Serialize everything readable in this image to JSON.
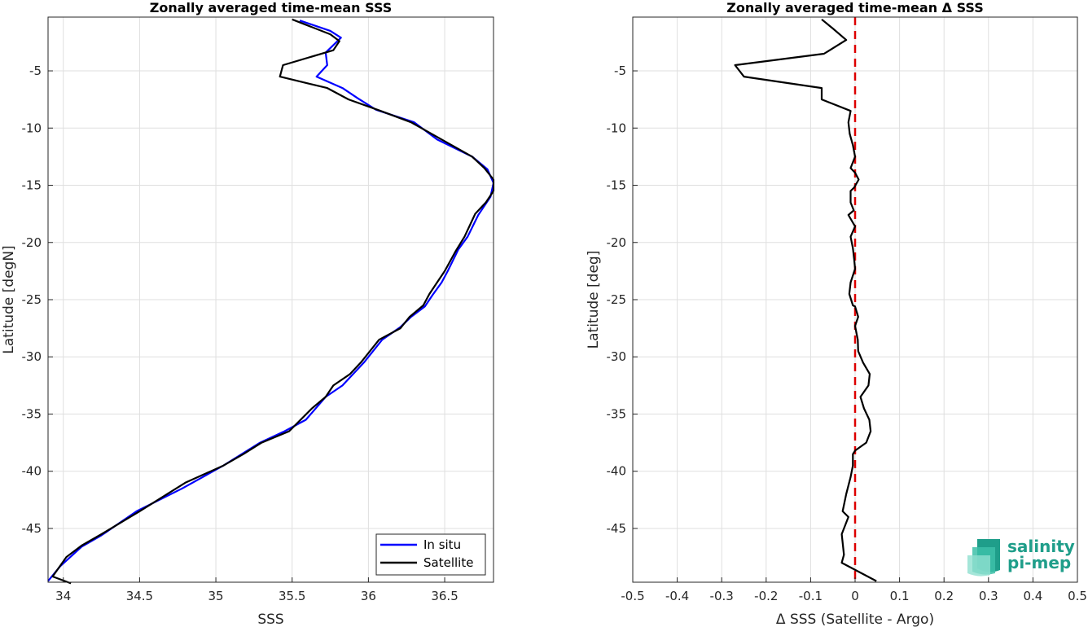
{
  "chart_data": [
    {
      "type": "line",
      "title": "Zonally averaged time-mean SSS",
      "xlabel": "SSS",
      "ylabel": "Latitude [degN]",
      "xlim": [
        33.9,
        36.82
      ],
      "ylim": [
        -49.7,
        -0.3
      ],
      "xticks": [
        34,
        34.5,
        35,
        35.5,
        36,
        36.5
      ],
      "yticks": [
        -5,
        -10,
        -15,
        -20,
        -25,
        -30,
        -35,
        -40,
        -45
      ],
      "grid": true,
      "legend": {
        "placement": "bottom-right",
        "entries": [
          "In situ",
          "Satellite"
        ]
      },
      "series": [
        {
          "name": "In situ",
          "color": "#0000ff",
          "points": [
            [
              35.55,
              -0.6
            ],
            [
              35.75,
              -1.5
            ],
            [
              35.82,
              -2.1
            ],
            [
              35.72,
              -3.4
            ],
            [
              35.73,
              -4.5
            ],
            [
              35.66,
              -5.5
            ],
            [
              35.83,
              -6.5
            ],
            [
              35.93,
              -7.4
            ],
            [
              36.05,
              -8.4
            ],
            [
              36.3,
              -9.5
            ],
            [
              36.45,
              -11.0
            ],
            [
              36.68,
              -12.5
            ],
            [
              36.78,
              -13.6
            ],
            [
              36.82,
              -14.8
            ],
            [
              36.8,
              -16.0
            ],
            [
              36.72,
              -17.6
            ],
            [
              36.65,
              -19.5
            ],
            [
              36.59,
              -20.6
            ],
            [
              36.52,
              -22.5
            ],
            [
              36.48,
              -23.5
            ],
            [
              36.42,
              -24.6
            ],
            [
              36.37,
              -25.6
            ],
            [
              36.28,
              -26.5
            ],
            [
              36.21,
              -27.4
            ],
            [
              36.09,
              -28.5
            ],
            [
              35.97,
              -30.5
            ],
            [
              35.83,
              -32.5
            ],
            [
              35.72,
              -33.5
            ],
            [
              35.59,
              -35.5
            ],
            [
              35.45,
              -36.5
            ],
            [
              35.29,
              -37.5
            ],
            [
              35.05,
              -39.5
            ],
            [
              34.78,
              -41.5
            ],
            [
              34.48,
              -43.5
            ],
            [
              34.25,
              -45.6
            ],
            [
              34.12,
              -46.6
            ],
            [
              33.98,
              -48.3
            ],
            [
              33.9,
              -49.6
            ]
          ]
        },
        {
          "name": "Satellite",
          "color": "#000000",
          "points": [
            [
              35.5,
              -0.5
            ],
            [
              35.75,
              -1.8
            ],
            [
              35.81,
              -2.4
            ],
            [
              35.77,
              -3.2
            ],
            [
              35.44,
              -4.5
            ],
            [
              35.42,
              -5.5
            ],
            [
              35.73,
              -6.5
            ],
            [
              35.87,
              -7.5
            ],
            [
              36.08,
              -8.5
            ],
            [
              36.28,
              -9.5
            ],
            [
              36.48,
              -11.0
            ],
            [
              36.68,
              -12.5
            ],
            [
              36.76,
              -13.5
            ],
            [
              36.82,
              -14.5
            ],
            [
              36.82,
              -15.5
            ],
            [
              36.77,
              -16.5
            ],
            [
              36.7,
              -17.5
            ],
            [
              36.63,
              -19.5
            ],
            [
              36.57,
              -20.8
            ],
            [
              36.5,
              -22.5
            ],
            [
              36.45,
              -23.5
            ],
            [
              36.4,
              -24.5
            ],
            [
              36.36,
              -25.5
            ],
            [
              36.27,
              -26.5
            ],
            [
              36.21,
              -27.5
            ],
            [
              36.07,
              -28.5
            ],
            [
              35.95,
              -30.5
            ],
            [
              35.88,
              -31.5
            ],
            [
              35.77,
              -32.5
            ],
            [
              35.72,
              -33.5
            ],
            [
              35.63,
              -34.5
            ],
            [
              35.48,
              -36.5
            ],
            [
              35.3,
              -37.5
            ],
            [
              35.18,
              -38.5
            ],
            [
              35.05,
              -39.5
            ],
            [
              34.8,
              -41.0
            ],
            [
              34.5,
              -43.5
            ],
            [
              34.25,
              -45.5
            ],
            [
              34.12,
              -46.5
            ],
            [
              34.02,
              -47.5
            ],
            [
              33.93,
              -49.2
            ],
            [
              34.05,
              -49.8
            ]
          ]
        }
      ]
    },
    {
      "type": "line",
      "title": "Zonally averaged time-mean Δ SSS",
      "xlabel": "Δ SSS (Satellite - Argo)",
      "ylabel": "Latitude [deg]",
      "xlim": [
        -0.5,
        0.5
      ],
      "ylim": [
        -49.7,
        -0.3
      ],
      "xticks": [
        "-0.5",
        "-0.4",
        "-0.3",
        "-0.2",
        "-0.1",
        "0",
        "0.1",
        "0.2",
        "0.3",
        "0.4",
        "0.5"
      ],
      "yticks": [
        -5,
        -10,
        -15,
        -20,
        -25,
        -30,
        -35,
        -40,
        -45
      ],
      "grid": true,
      "reference_line": {
        "x": 0,
        "color": "#dd0000",
        "style": "dashed"
      },
      "series": [
        {
          "color": "#000000",
          "points": [
            [
              -0.075,
              -0.5
            ],
            [
              -0.05,
              -1.3
            ],
            [
              -0.02,
              -2.3
            ],
            [
              -0.07,
              -3.5
            ],
            [
              -0.27,
              -4.5
            ],
            [
              -0.25,
              -5.5
            ],
            [
              -0.075,
              -6.5
            ],
            [
              -0.075,
              -7.5
            ],
            [
              -0.01,
              -8.5
            ],
            [
              -0.015,
              -9.5
            ],
            [
              -0.012,
              -10.5
            ],
            [
              -0.005,
              -11.5
            ],
            [
              0.0,
              -12.5
            ],
            [
              -0.01,
              -13.5
            ],
            [
              0.0,
              -13.9
            ],
            [
              0.008,
              -14.5
            ],
            [
              -0.002,
              -15.2
            ],
            [
              -0.01,
              -15.5
            ],
            [
              -0.01,
              -16.5
            ],
            [
              -0.003,
              -17.2
            ],
            [
              -0.015,
              -17.6
            ],
            [
              0.0,
              -18.6
            ],
            [
              -0.01,
              -19.5
            ],
            [
              -0.005,
              -20.5
            ],
            [
              -0.002,
              -21.5
            ],
            [
              0.0,
              -22.3
            ],
            [
              -0.01,
              -23.5
            ],
            [
              -0.013,
              -24.5
            ],
            [
              -0.005,
              -25.5
            ],
            [
              0.0,
              -25.6
            ],
            [
              0.007,
              -26.5
            ],
            [
              0.0,
              -27.3
            ],
            [
              0.006,
              -28.5
            ],
            [
              0.007,
              -29.5
            ],
            [
              0.018,
              -30.5
            ],
            [
              0.033,
              -31.5
            ],
            [
              0.03,
              -32.5
            ],
            [
              0.012,
              -33.5
            ],
            [
              0.02,
              -34.5
            ],
            [
              0.032,
              -35.5
            ],
            [
              0.035,
              -36.5
            ],
            [
              0.025,
              -37.5
            ],
            [
              0.0,
              -38.2
            ],
            [
              -0.005,
              -38.5
            ],
            [
              -0.005,
              -39.5
            ],
            [
              -0.01,
              -40.5
            ],
            [
              -0.02,
              -42.0
            ],
            [
              -0.028,
              -43.5
            ],
            [
              -0.015,
              -44.0
            ],
            [
              -0.03,
              -45.5
            ],
            [
              -0.025,
              -47.3
            ],
            [
              -0.03,
              -48.0
            ],
            [
              0.048,
              -49.6
            ]
          ]
        }
      ]
    }
  ],
  "logo": {
    "line1": "salinity",
    "line2": "pi-mep",
    "color": "#1f9e8a"
  }
}
